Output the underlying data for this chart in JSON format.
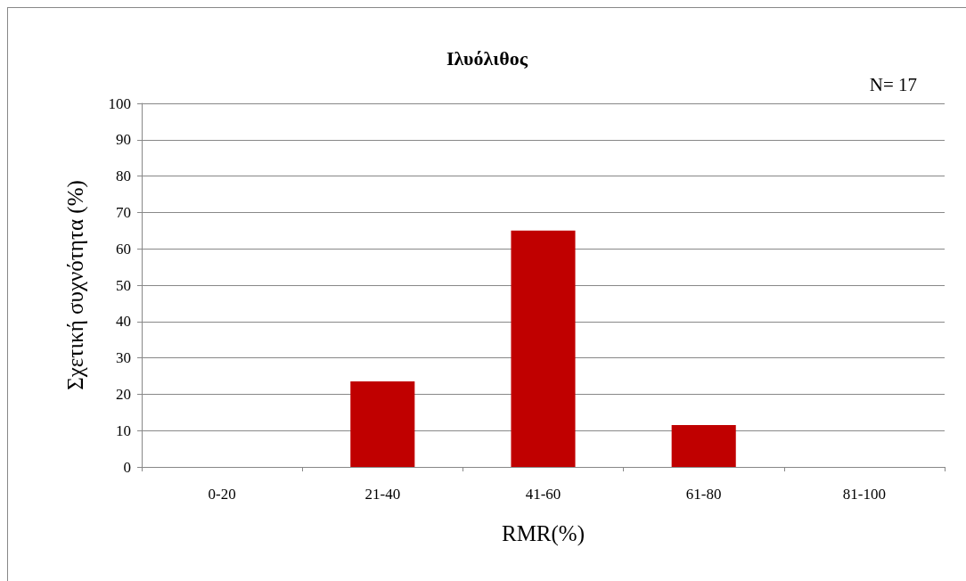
{
  "chart_data": {
    "type": "bar",
    "title": "Ιλυόλιθος",
    "xlabel": "RMR(%)",
    "ylabel": "Σχετική συχνότητα (%)",
    "annotations": [
      "N= 17"
    ],
    "categories": [
      "0-20",
      "21-40",
      "41-60",
      "61-80",
      "81-100"
    ],
    "values": [
      0,
      23.5,
      65,
      11.5,
      0
    ],
    "color": "#c00000",
    "ylim": [
      0,
      100
    ],
    "yticks": [
      0,
      10,
      20,
      30,
      40,
      50,
      60,
      70,
      80,
      90,
      100
    ],
    "grid": "y"
  }
}
